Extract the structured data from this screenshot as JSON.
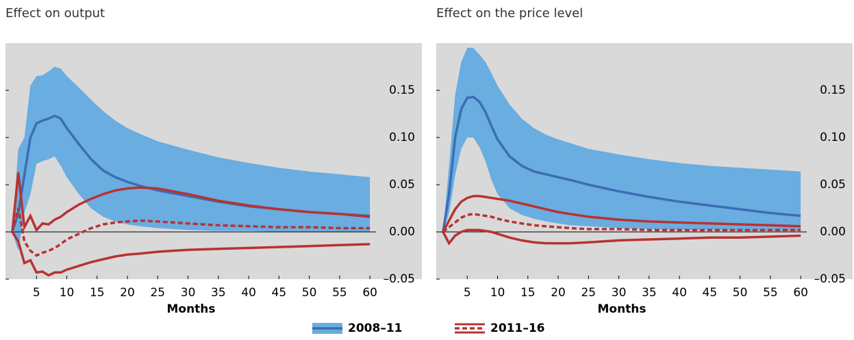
{
  "chart_data": [
    {
      "type": "line",
      "title": "Effect on output",
      "xlabel": "Months",
      "x": [
        1,
        2,
        3,
        4,
        5,
        6,
        7,
        8,
        9,
        10,
        12,
        14,
        16,
        18,
        20,
        22,
        25,
        30,
        35,
        40,
        45,
        50,
        55,
        60
      ],
      "xlim": [
        0,
        61
      ],
      "xticks": [
        5,
        10,
        15,
        20,
        25,
        30,
        35,
        40,
        45,
        50,
        55,
        60
      ],
      "ylim": [
        -0.05,
        0.2
      ],
      "yticks": [
        {
          "value": -0.05,
          "label": "–0.05"
        },
        {
          "value": 0,
          "label": "0.00"
        },
        {
          "value": 0.05,
          "label": "0.05"
        },
        {
          "value": 0.1,
          "label": "0.10"
        },
        0.15
      ],
      "zero_line": true,
      "background": "#d9d9d9",
      "series": [
        {
          "color": "#3b6db4",
          "band_color": "#6aade0",
          "band_style": "fill",
          "values": [
            0,
            0.02,
            0.06,
            0.1,
            0.115,
            0.118,
            0.12,
            0.123,
            0.12,
            0.11,
            0.093,
            0.077,
            0.065,
            0.058,
            0.053,
            0.049,
            0.044,
            0.038,
            0.032,
            0.027,
            0.024,
            0.021,
            0.019,
            0.017
          ],
          "upper": [
            0,
            0.088,
            0.1,
            0.155,
            0.165,
            0.166,
            0.17,
            0.175,
            0.173,
            0.165,
            0.153,
            0.14,
            0.128,
            0.118,
            0.11,
            0.104,
            0.096,
            0.087,
            0.079,
            0.073,
            0.068,
            0.064,
            0.061,
            0.058
          ],
          "lower": [
            0,
            -0.02,
            0.02,
            0.04,
            0.072,
            0.075,
            0.077,
            0.08,
            0.07,
            0.058,
            0.04,
            0.025,
            0.016,
            0.011,
            0.008,
            0.006,
            0.004,
            0.002,
            0.001,
            0.001,
            0,
            0,
            0,
            0
          ]
        },
        {
          "color": "#b83232",
          "style": "dashed",
          "band_style": "lines",
          "values": [
            0,
            0.025,
            -0.01,
            -0.02,
            -0.025,
            -0.022,
            -0.02,
            -0.017,
            -0.013,
            -0.008,
            -0.002,
            0.004,
            0.008,
            0.01,
            0.011,
            0.012,
            0.011,
            0.009,
            0.007,
            0.006,
            0.005,
            0.005,
            0.004,
            0.004
          ],
          "upper": [
            0,
            0.063,
            0.005,
            0.017,
            0.002,
            0.009,
            0.008,
            0.013,
            0.016,
            0.021,
            0.029,
            0.035,
            0.04,
            0.044,
            0.046,
            0.047,
            0.046,
            0.04,
            0.033,
            0.028,
            0.024,
            0.021,
            0.019,
            0.016
          ],
          "lower": [
            0,
            -0.01,
            -0.033,
            -0.03,
            -0.043,
            -0.042,
            -0.046,
            -0.043,
            -0.043,
            -0.04,
            -0.036,
            -0.032,
            -0.029,
            -0.026,
            -0.024,
            -0.023,
            -0.021,
            -0.019,
            -0.018,
            -0.017,
            -0.016,
            -0.015,
            -0.014,
            -0.013
          ]
        }
      ]
    },
    {
      "type": "line",
      "title": "Effect on the price level",
      "xlabel": "Months",
      "x": [
        1,
        2,
        3,
        4,
        5,
        6,
        7,
        8,
        9,
        10,
        12,
        14,
        16,
        18,
        20,
        22,
        25,
        30,
        35,
        40,
        45,
        50,
        55,
        60
      ],
      "xlim": [
        0,
        61
      ],
      "xticks": [
        5,
        10,
        15,
        20,
        25,
        30,
        35,
        40,
        45,
        50,
        55,
        60
      ],
      "ylim": [
        -0.05,
        0.2
      ],
      "yticks": [
        {
          "value": -0.05,
          "label": "–0.05"
        },
        {
          "value": 0,
          "label": "0.00"
        },
        {
          "value": 0.05,
          "label": "0.05"
        },
        {
          "value": 0.1,
          "label": "0.10"
        },
        0.15
      ],
      "zero_line": true,
      "background": "#d9d9d9",
      "series": [
        {
          "color": "#3b6db4",
          "band_color": "#6aade0",
          "band_style": "fill",
          "values": [
            0,
            0.04,
            0.1,
            0.13,
            0.142,
            0.143,
            0.138,
            0.127,
            0.112,
            0.098,
            0.08,
            0.07,
            0.064,
            0.061,
            0.058,
            0.055,
            0.05,
            0.043,
            0.037,
            0.032,
            0.028,
            0.024,
            0.02,
            0.017
          ],
          "upper": [
            0,
            0.07,
            0.145,
            0.18,
            0.195,
            0.195,
            0.188,
            0.18,
            0.168,
            0.155,
            0.135,
            0.12,
            0.11,
            0.103,
            0.098,
            0.094,
            0.088,
            0.082,
            0.077,
            0.073,
            0.07,
            0.068,
            0.066,
            0.064
          ],
          "lower": [
            0,
            0.02,
            0.06,
            0.088,
            0.1,
            0.1,
            0.09,
            0.075,
            0.055,
            0.04,
            0.025,
            0.018,
            0.014,
            0.011,
            0.009,
            0.007,
            0.006,
            0.004,
            0.003,
            0.002,
            0.002,
            0.001,
            0.001,
            0.001
          ]
        },
        {
          "color": "#b83232",
          "style": "dashed",
          "band_style": "lines",
          "values": [
            0,
            0.005,
            0.01,
            0.015,
            0.018,
            0.019,
            0.018,
            0.017,
            0.016,
            0.014,
            0.011,
            0.009,
            0.007,
            0.006,
            0.005,
            0.004,
            0.003,
            0.003,
            0.002,
            0.002,
            0.002,
            0.002,
            0.002,
            0.002
          ],
          "upper": [
            0,
            0.012,
            0.024,
            0.032,
            0.036,
            0.038,
            0.038,
            0.037,
            0.036,
            0.035,
            0.033,
            0.03,
            0.027,
            0.024,
            0.021,
            0.019,
            0.016,
            0.013,
            0.011,
            0.01,
            0.009,
            0.008,
            0.007,
            0.006
          ],
          "lower": [
            0,
            -0.012,
            -0.004,
            0,
            0.002,
            0.002,
            0.002,
            0.001,
            0,
            -0.002,
            -0.006,
            -0.009,
            -0.011,
            -0.012,
            -0.012,
            -0.012,
            -0.011,
            -0.009,
            -0.008,
            -0.007,
            -0.006,
            -0.006,
            -0.005,
            -0.004
          ]
        }
      ]
    }
  ],
  "legend": [
    {
      "label": "2008–11",
      "color": "#3b6db4",
      "band_color": "#6aade0"
    },
    {
      "label": "2011–16",
      "color": "#b83232",
      "style": "dashed"
    }
  ]
}
